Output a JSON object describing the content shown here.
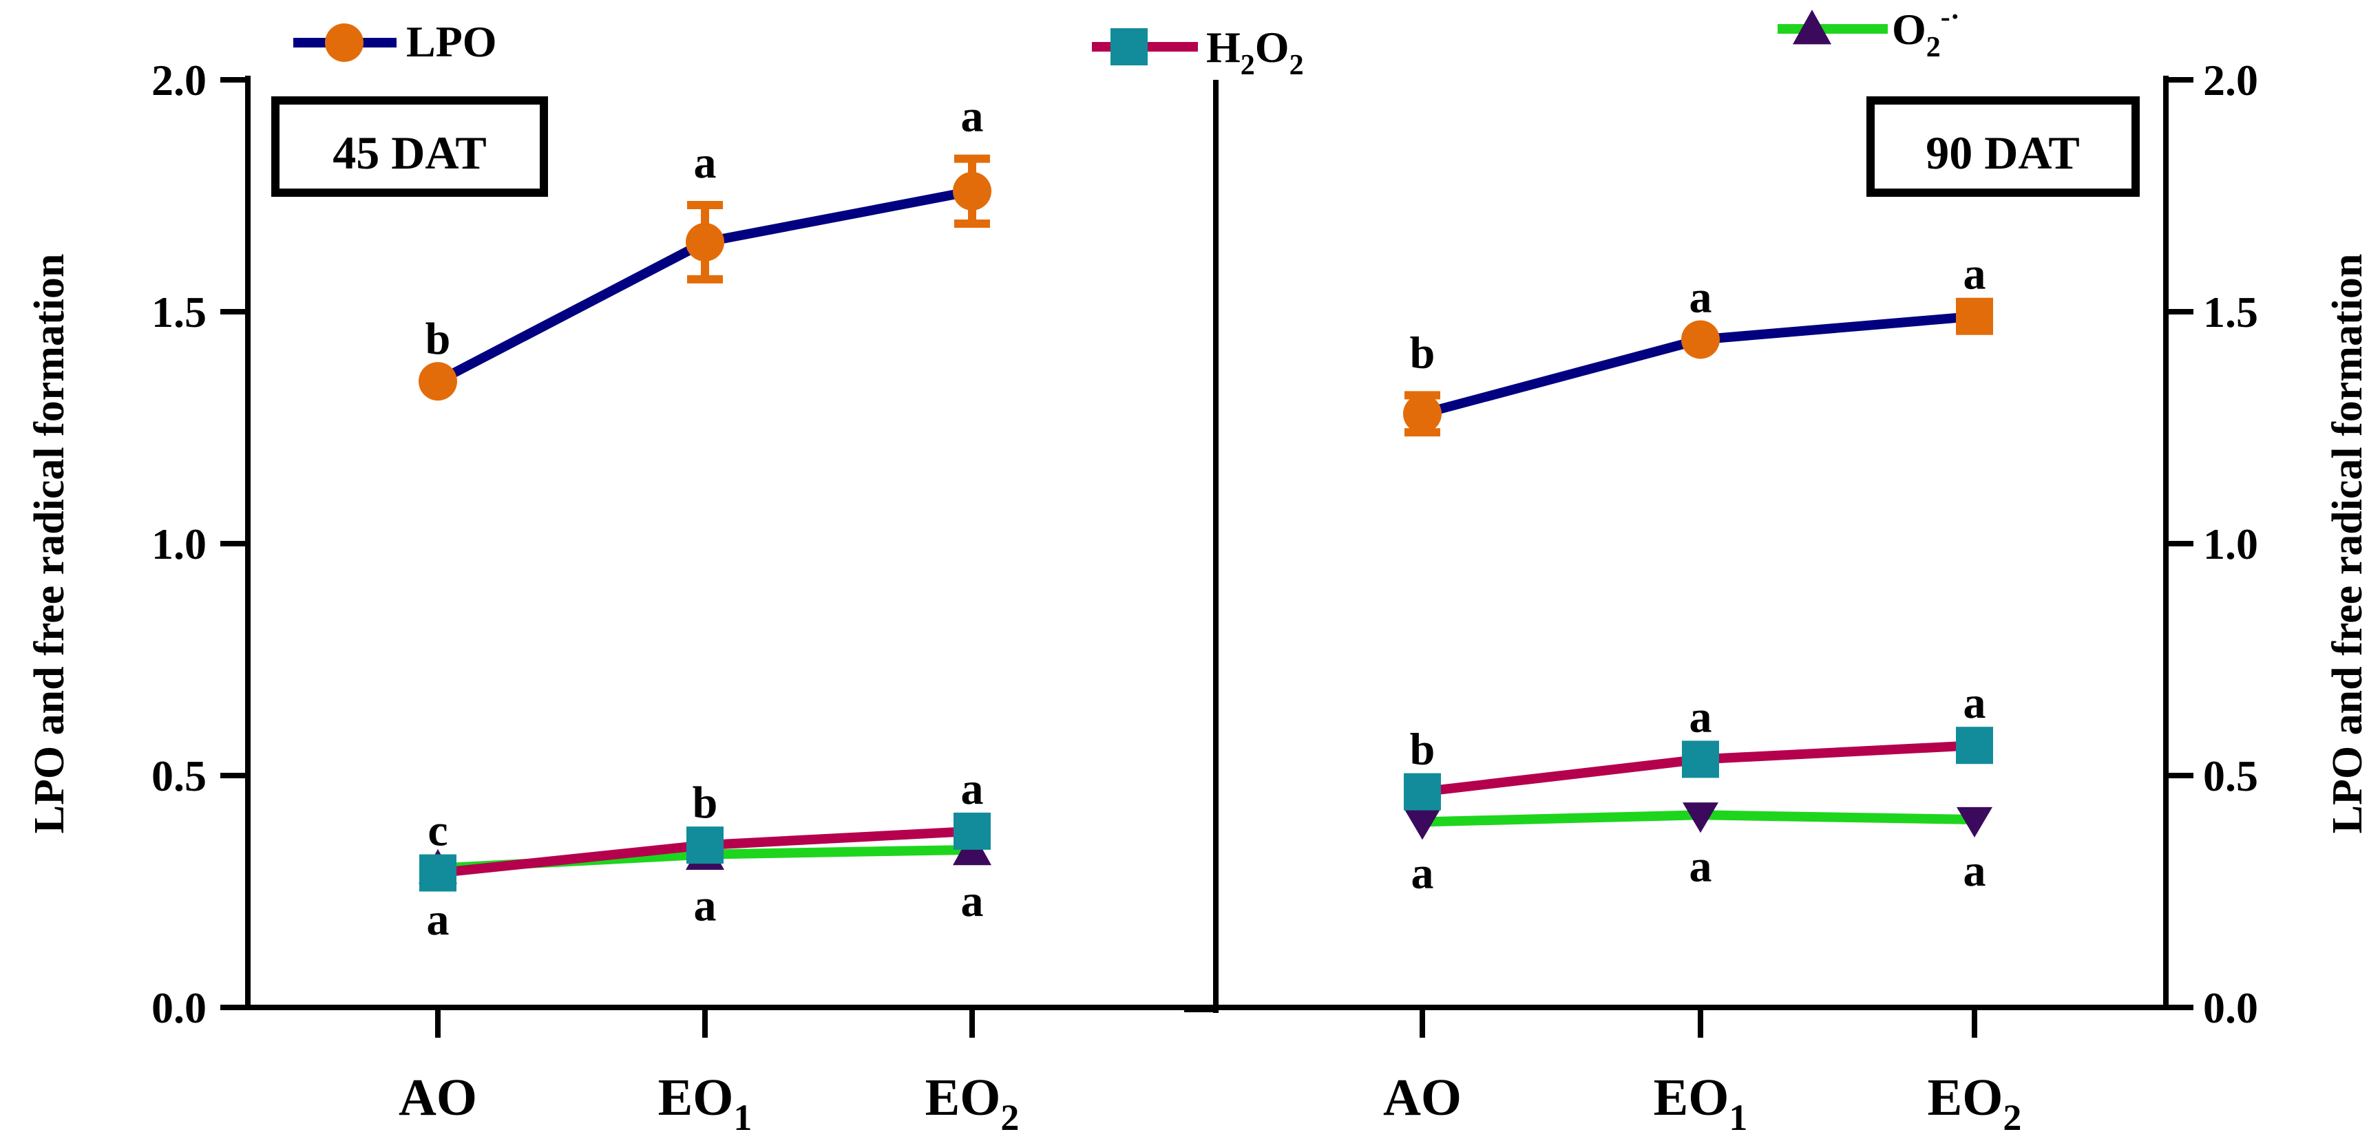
{
  "chart_data": {
    "type": "line",
    "ylabel": "LPO and free radical formation",
    "ylim": [
      0,
      2.0
    ],
    "yticks": [
      "0.0",
      "0.5",
      "1.0",
      "1.5",
      "2.0"
    ],
    "categories": [
      {
        "base": "AO",
        "sub": ""
      },
      {
        "base": "EO",
        "sub": "1"
      },
      {
        "base": "EO",
        "sub": "2"
      }
    ],
    "legend": [
      {
        "key": "LPO",
        "text": "LPO",
        "line_color": "#000080",
        "marker_color": "#E36C0A",
        "marker": "circle"
      },
      {
        "key": "H2O2",
        "text_parts": [
          "H",
          "2",
          "O",
          "2"
        ],
        "line_color": "#B5004D",
        "marker_color": "#128C9A",
        "marker": "square"
      },
      {
        "key": "O2",
        "text_parts": [
          "O",
          "2",
          "-·"
        ],
        "line_color": "#1ED51E",
        "marker_color": "#3B0A5C",
        "marker": "triangle"
      }
    ],
    "panels": [
      {
        "label": "45 DAT",
        "series": [
          {
            "key": "O2",
            "values": [
              0.3,
              0.33,
              0.34
            ],
            "err": [
              0,
              0,
              0
            ],
            "markers": [
              "triangle-up",
              "triangle-up",
              "triangle-up"
            ],
            "letters": [
              "a",
              "a",
              "a"
            ],
            "letter_pos": "below"
          },
          {
            "key": "H2O2",
            "values": [
              0.29,
              0.35,
              0.38
            ],
            "err": [
              0,
              0,
              0
            ],
            "letters": [
              "c",
              "b",
              "a"
            ],
            "letter_pos": "above"
          },
          {
            "key": "LPO",
            "values": [
              1.35,
              1.65,
              1.76
            ],
            "err": [
              0,
              0.08,
              0.07
            ],
            "letters": [
              "b",
              "a",
              "a"
            ],
            "letter_pos": "above"
          }
        ]
      },
      {
        "label": "90 DAT",
        "series": [
          {
            "key": "O2",
            "values": [
              0.4,
              0.415,
              0.405
            ],
            "err": [
              0,
              0,
              0
            ],
            "markers": [
              "triangle-down",
              "triangle-down",
              "triangle-down"
            ],
            "letters": [
              "a",
              "a",
              "a"
            ],
            "letter_pos": "below"
          },
          {
            "key": "H2O2",
            "values": [
              0.465,
              0.535,
              0.565
            ],
            "err": [
              0,
              0,
              0
            ],
            "letters": [
              "b",
              "a",
              "a"
            ],
            "letter_pos": "above"
          },
          {
            "key": "LPO",
            "values": [
              1.28,
              1.44,
              1.49
            ],
            "err": [
              0.04,
              0,
              0
            ],
            "markers": [
              "circle",
              "circle",
              "square"
            ],
            "letters": [
              "b",
              "a",
              "a"
            ],
            "letter_pos": "above"
          }
        ]
      }
    ]
  }
}
